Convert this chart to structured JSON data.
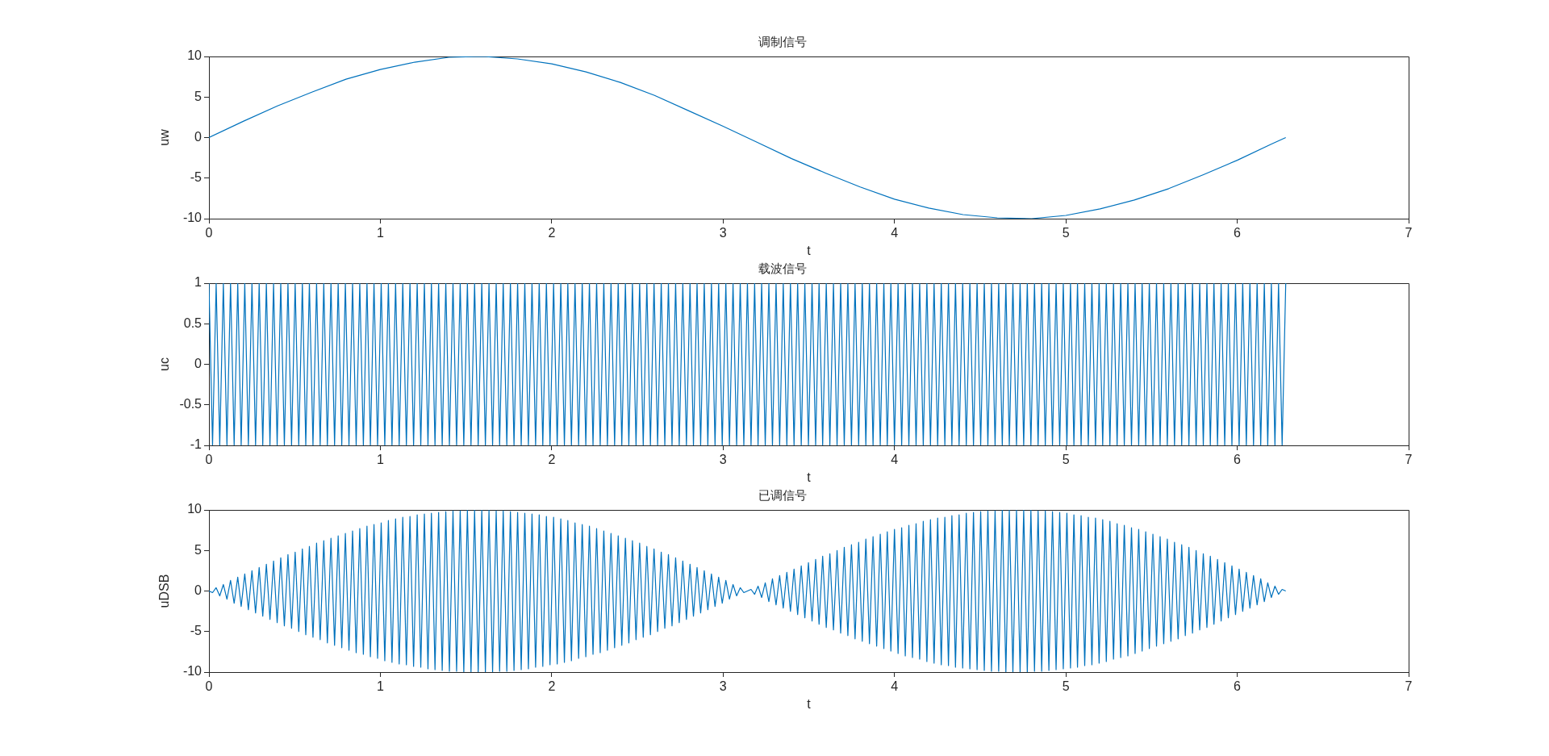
{
  "chart_data": [
    {
      "type": "line",
      "title": "调制信号",
      "xlabel": "t",
      "ylabel": "uw",
      "color": "#0072bd",
      "xlim": [
        0,
        7
      ],
      "xticks": [
        0,
        1,
        2,
        3,
        4,
        5,
        6,
        7
      ],
      "ylim": [
        -10,
        10
      ],
      "yticks": [
        -10,
        -5,
        0,
        5,
        10
      ],
      "x": [
        0,
        0.2,
        0.4,
        0.6,
        0.8,
        1.0,
        1.2,
        1.4,
        1.6,
        1.8,
        2.0,
        2.2,
        2.4,
        2.6,
        2.8,
        3.0,
        3.2,
        3.4,
        3.6,
        3.8,
        4.0,
        4.2,
        4.4,
        4.6,
        4.8,
        5.0,
        5.2,
        5.4,
        5.6,
        5.8,
        6.0,
        6.2,
        6.283
      ],
      "values": [
        0,
        2.0,
        3.9,
        5.6,
        7.2,
        8.4,
        9.3,
        9.9,
        10.0,
        9.7,
        9.1,
        8.1,
        6.8,
        5.2,
        3.3,
        1.4,
        -0.6,
        -2.6,
        -4.4,
        -6.1,
        -7.6,
        -8.7,
        -9.5,
        -9.9,
        -10.0,
        -9.6,
        -8.8,
        -7.7,
        -6.3,
        -4.6,
        -2.8,
        -0.8,
        0
      ]
    },
    {
      "type": "line",
      "title": "载波信号",
      "xlabel": "t",
      "ylabel": "uc",
      "color": "#0072bd",
      "xlim": [
        0,
        7
      ],
      "xticks": [
        0,
        1,
        2,
        3,
        4,
        5,
        6,
        7
      ],
      "ylim": [
        -1,
        1
      ],
      "yticks": [
        -1,
        -0.5,
        0,
        0.5,
        1
      ],
      "x": [
        0,
        0.021,
        0.042,
        0.063,
        0.084,
        0.105,
        0.126,
        0.147,
        0.168,
        0.188,
        0.209,
        0.23,
        0.251,
        0.272,
        0.293,
        0.314,
        0.335,
        0.356,
        0.377,
        0.398,
        0.419,
        0.44,
        0.461,
        0.482,
        0.503,
        0.524,
        0.545,
        0.565,
        0.586,
        0.607,
        0.628,
        0.649,
        0.67,
        0.691,
        0.712,
        0.733,
        0.754,
        0.775,
        0.796,
        0.817,
        0.838,
        0.859,
        0.88,
        0.901,
        0.922,
        0.942,
        0.963,
        0.984,
        1.005,
        1.026,
        1.047,
        1.068,
        1.089,
        1.11,
        1.131,
        1.152,
        1.173,
        1.194,
        1.215,
        1.236,
        1.257,
        1.278,
        1.298,
        1.319,
        1.34,
        1.361,
        1.382,
        1.403,
        1.424,
        1.445,
        1.466,
        1.487,
        1.508,
        1.529,
        1.55,
        1.571,
        1.592,
        1.613,
        1.634,
        1.655,
        1.676,
        1.696,
        1.717,
        1.738,
        1.759,
        1.78,
        1.801,
        1.822,
        1.843,
        1.864,
        1.885,
        1.906,
        1.927,
        1.948,
        1.969,
        1.99,
        2.011,
        2.032,
        2.053,
        2.074,
        2.094,
        2.115,
        2.136,
        2.157,
        2.178,
        2.199,
        2.22,
        2.241,
        2.262,
        2.283,
        2.304,
        2.325,
        2.346,
        2.367,
        2.388,
        2.409,
        2.43,
        2.45,
        2.471,
        2.492,
        2.513,
        2.534,
        2.555,
        2.576,
        2.597,
        2.618,
        2.639,
        2.66,
        2.681,
        2.702,
        2.723,
        2.744,
        2.765,
        2.786,
        2.807,
        2.827,
        2.848,
        2.869,
        2.89,
        2.911,
        2.932,
        2.953,
        2.974,
        2.995,
        3.016,
        3.037,
        3.058,
        3.079,
        3.1,
        3.121,
        3.142,
        3.163,
        3.184,
        3.204,
        3.225,
        3.246,
        3.267,
        3.288,
        3.309,
        3.33,
        3.351,
        3.372,
        3.393,
        3.414,
        3.435,
        3.456,
        3.477,
        3.498,
        3.519,
        3.54,
        3.56,
        3.581,
        3.602,
        3.623,
        3.644,
        3.665,
        3.686,
        3.707,
        3.728,
        3.749,
        3.77,
        3.791,
        3.812,
        3.833,
        3.854,
        3.875,
        3.896,
        3.917,
        3.938,
        3.958,
        3.979,
        4.0,
        4.021,
        4.042,
        4.063,
        4.084,
        4.105,
        4.126,
        4.147,
        4.168,
        4.189,
        4.21,
        4.231,
        4.252,
        4.273,
        4.294,
        4.315,
        4.335,
        4.356,
        4.377,
        4.398,
        4.419,
        4.44,
        4.461,
        4.482,
        4.503,
        4.524,
        4.545,
        4.566,
        4.587,
        4.608,
        4.629,
        4.65,
        4.67,
        4.691,
        4.712,
        4.733,
        4.754,
        4.775,
        4.796,
        4.817,
        4.838,
        4.859,
        4.88,
        4.901,
        4.922,
        4.943,
        4.964,
        4.985,
        5.006,
        5.027,
        5.047,
        5.068,
        5.089,
        5.11,
        5.131,
        5.152,
        5.173,
        5.194,
        5.215,
        5.236,
        5.257,
        5.278,
        5.299,
        5.32,
        5.341,
        5.362,
        5.383,
        5.404,
        5.425,
        5.445,
        5.466,
        5.487,
        5.508,
        5.529,
        5.55,
        5.571,
        5.592,
        5.613,
        5.634,
        5.655,
        5.676,
        5.697,
        5.718,
        5.739,
        5.76,
        5.781,
        5.802,
        5.823,
        5.843,
        5.864,
        5.885,
        5.906,
        5.927,
        5.948,
        5.969,
        5.99,
        6.011,
        6.032,
        6.053,
        6.074,
        6.095,
        6.116,
        6.137,
        6.158,
        6.178,
        6.199,
        6.22,
        6.241,
        6.262,
        6.283
      ],
      "values": [
        1,
        -1,
        1,
        -1,
        1,
        -1,
        1,
        -1,
        1,
        -1,
        1,
        -1,
        1,
        -1,
        1,
        -1,
        1,
        -1,
        1,
        -1,
        1,
        -1,
        1,
        -1,
        1,
        -1,
        1,
        -1,
        1,
        -1,
        1,
        -1,
        1,
        -1,
        1,
        -1,
        1,
        -1,
        1,
        -1,
        1,
        -1,
        1,
        -1,
        1,
        -1,
        1,
        -1,
        1,
        -1,
        1,
        -1,
        1,
        -1,
        1,
        -1,
        1,
        -1,
        1,
        -1,
        1,
        -1,
        1,
        -1,
        1,
        -1,
        1,
        -1,
        1,
        -1,
        1,
        -1,
        1,
        -1,
        1,
        -1,
        1,
        -1,
        1,
        -1,
        1,
        -1,
        1,
        -1,
        1,
        -1,
        1,
        -1,
        1,
        -1,
        1,
        -1,
        1,
        -1,
        1,
        -1,
        1,
        -1,
        1,
        -1,
        1,
        -1,
        1,
        -1,
        1,
        -1,
        1,
        -1,
        1,
        -1,
        1,
        -1,
        1,
        -1,
        1,
        -1,
        1,
        -1,
        1,
        -1,
        1,
        -1,
        1,
        -1,
        1,
        -1,
        1,
        -1,
        1,
        -1,
        1,
        -1,
        1,
        -1,
        1,
        -1,
        1,
        -1,
        1,
        -1,
        1,
        -1,
        1,
        -1,
        1,
        -1,
        1,
        -1,
        1,
        -1,
        1,
        -1,
        1,
        -1,
        1,
        -1,
        1,
        -1,
        1,
        -1,
        1,
        -1,
        1,
        -1,
        1,
        -1,
        1,
        -1,
        1,
        -1,
        1,
        -1,
        1,
        -1,
        1,
        -1,
        1,
        -1,
        1,
        -1,
        1,
        -1,
        1,
        -1,
        1,
        -1,
        1,
        -1,
        1,
        -1,
        1,
        -1,
        1,
        -1,
        1,
        -1,
        1,
        -1,
        1,
        -1,
        1,
        -1,
        1,
        -1,
        1,
        -1,
        1,
        -1,
        1,
        -1,
        1,
        -1,
        1,
        -1,
        1,
        -1,
        1,
        -1,
        1,
        -1,
        1,
        -1,
        1,
        -1,
        1,
        -1,
        1,
        -1,
        1,
        -1,
        1,
        -1,
        1,
        -1,
        1,
        -1,
        1,
        -1,
        1,
        -1,
        1,
        -1,
        1,
        -1,
        1,
        -1,
        1,
        -1,
        1,
        -1,
        1,
        -1,
        1,
        -1,
        1,
        -1,
        1,
        -1,
        1,
        -1,
        1,
        -1,
        1,
        -1,
        1,
        -1,
        1,
        -1,
        1,
        -1,
        1,
        -1,
        1,
        -1,
        1,
        -1,
        1,
        -1,
        1,
        -1,
        1,
        -1,
        1,
        -1,
        1,
        -1,
        1,
        -1,
        1,
        -1,
        1,
        -1,
        1,
        -1,
        1,
        -1,
        1,
        -1,
        1,
        -1,
        1
      ]
    },
    {
      "type": "line",
      "title": "已调信号",
      "xlabel": "t",
      "ylabel": "uDSB",
      "color": "#0072bd",
      "xlim": [
        0,
        7
      ],
      "xticks": [
        0,
        1,
        2,
        3,
        4,
        5,
        6,
        7
      ],
      "ylim": [
        -10,
        10
      ],
      "yticks": [
        -10,
        -5,
        0,
        5,
        10
      ],
      "x": [
        0,
        0.021,
        0.042,
        0.063,
        0.084,
        0.105,
        0.126,
        0.147,
        0.168,
        0.188,
        0.209,
        0.23,
        0.251,
        0.272,
        0.293,
        0.314,
        0.335,
        0.356,
        0.377,
        0.398,
        0.419,
        0.44,
        0.461,
        0.482,
        0.503,
        0.524,
        0.545,
        0.565,
        0.586,
        0.607,
        0.628,
        0.649,
        0.67,
        0.691,
        0.712,
        0.733,
        0.754,
        0.775,
        0.796,
        0.817,
        0.838,
        0.859,
        0.88,
        0.901,
        0.922,
        0.942,
        0.963,
        0.984,
        1.005,
        1.026,
        1.047,
        1.068,
        1.089,
        1.11,
        1.131,
        1.152,
        1.173,
        1.194,
        1.215,
        1.236,
        1.257,
        1.278,
        1.298,
        1.319,
        1.34,
        1.361,
        1.382,
        1.403,
        1.424,
        1.445,
        1.466,
        1.487,
        1.508,
        1.529,
        1.55,
        1.571,
        1.592,
        1.613,
        1.634,
        1.655,
        1.676,
        1.696,
        1.717,
        1.738,
        1.759,
        1.78,
        1.801,
        1.822,
        1.843,
        1.864,
        1.885,
        1.906,
        1.927,
        1.948,
        1.969,
        1.99,
        2.011,
        2.032,
        2.053,
        2.074,
        2.094,
        2.115,
        2.136,
        2.157,
        2.178,
        2.199,
        2.22,
        2.241,
        2.262,
        2.283,
        2.304,
        2.325,
        2.346,
        2.367,
        2.388,
        2.409,
        2.43,
        2.45,
        2.471,
        2.492,
        2.513,
        2.534,
        2.555,
        2.576,
        2.597,
        2.618,
        2.639,
        2.66,
        2.681,
        2.702,
        2.723,
        2.744,
        2.765,
        2.786,
        2.807,
        2.827,
        2.848,
        2.869,
        2.89,
        2.911,
        2.932,
        2.953,
        2.974,
        2.995,
        3.016,
        3.037,
        3.058,
        3.079,
        3.1,
        3.121,
        3.142,
        3.163,
        3.184,
        3.204,
        3.225,
        3.246,
        3.267,
        3.288,
        3.309,
        3.33,
        3.351,
        3.372,
        3.393,
        3.414,
        3.435,
        3.456,
        3.477,
        3.498,
        3.519,
        3.54,
        3.56,
        3.581,
        3.602,
        3.623,
        3.644,
        3.665,
        3.686,
        3.707,
        3.728,
        3.749,
        3.77,
        3.791,
        3.812,
        3.833,
        3.854,
        3.875,
        3.896,
        3.917,
        3.938,
        3.958,
        3.979,
        4.0,
        4.021,
        4.042,
        4.063,
        4.084,
        4.105,
        4.126,
        4.147,
        4.168,
        4.189,
        4.21,
        4.231,
        4.252,
        4.273,
        4.294,
        4.315,
        4.335,
        4.356,
        4.377,
        4.398,
        4.419,
        4.44,
        4.461,
        4.482,
        4.503,
        4.524,
        4.545,
        4.566,
        4.587,
        4.608,
        4.629,
        4.65,
        4.67,
        4.691,
        4.712,
        4.733,
        4.754,
        4.775,
        4.796,
        4.817,
        4.838,
        4.859,
        4.88,
        4.901,
        4.922,
        4.943,
        4.964,
        4.985,
        5.006,
        5.027,
        5.047,
        5.068,
        5.089,
        5.11,
        5.131,
        5.152,
        5.173,
        5.194,
        5.215,
        5.236,
        5.257,
        5.278,
        5.299,
        5.32,
        5.341,
        5.362,
        5.383,
        5.404,
        5.425,
        5.445,
        5.466,
        5.487,
        5.508,
        5.529,
        5.55,
        5.571,
        5.592,
        5.613,
        5.634,
        5.655,
        5.676,
        5.697,
        5.718,
        5.739,
        5.76,
        5.781,
        5.802,
        5.823,
        5.843,
        5.864,
        5.885,
        5.906,
        5.927,
        5.948,
        5.969,
        5.99,
        6.011,
        6.032,
        6.053,
        6.074,
        6.095,
        6.116,
        6.137,
        6.158,
        6.178,
        6.199,
        6.22,
        6.241,
        6.262,
        6.283
      ],
      "values": [
        0,
        -0.2,
        0.4,
        -0.6,
        0.8,
        -1.0,
        1.3,
        -1.5,
        1.7,
        -1.9,
        2.1,
        -2.3,
        2.5,
        -2.7,
        2.9,
        -3.1,
        3.3,
        -3.5,
        3.7,
        -3.9,
        4.1,
        -4.3,
        4.5,
        -4.6,
        4.8,
        -5.0,
        5.2,
        -5.4,
        5.5,
        -5.7,
        5.9,
        -6.0,
        6.2,
        -6.4,
        6.5,
        -6.7,
        6.8,
        -7.0,
        7.1,
        -7.3,
        7.4,
        -7.6,
        7.7,
        -7.8,
        8.0,
        -8.1,
        8.2,
        -8.3,
        8.4,
        -8.6,
        8.7,
        -8.8,
        8.9,
        -9.0,
        9.1,
        -9.1,
        9.2,
        -9.3,
        9.4,
        -9.4,
        9.5,
        -9.6,
        9.6,
        -9.7,
        9.7,
        -9.8,
        9.8,
        -9.9,
        9.9,
        -9.9,
        9.9,
        -10.0,
        10.0,
        -10.0,
        10.0,
        -10.0,
        10.0,
        -10.0,
        10.0,
        -10.0,
        9.9,
        -9.9,
        9.9,
        -9.9,
        9.8,
        -9.8,
        9.7,
        -9.7,
        9.6,
        -9.6,
        9.5,
        -9.4,
        9.4,
        -9.3,
        9.2,
        -9.1,
        9.1,
        -9.0,
        8.9,
        -8.8,
        8.7,
        -8.6,
        8.4,
        -8.3,
        8.2,
        -8.1,
        8.0,
        -7.8,
        7.7,
        -7.6,
        7.4,
        -7.3,
        7.1,
        -7.0,
        6.8,
        -6.7,
        6.5,
        -6.4,
        6.2,
        -6.0,
        5.9,
        -5.7,
        5.5,
        -5.4,
        5.2,
        -5.0,
        4.8,
        -4.6,
        4.5,
        -4.3,
        4.1,
        -3.9,
        3.7,
        -3.5,
        3.3,
        -3.1,
        2.9,
        -2.7,
        2.5,
        -2.3,
        2.1,
        -1.9,
        1.7,
        -1.5,
        1.3,
        -1.0,
        0.8,
        -0.6,
        0.4,
        -0.2,
        0,
        0.2,
        -0.4,
        0.6,
        -0.8,
        1.0,
        -1.3,
        1.5,
        -1.7,
        1.9,
        -2.1,
        2.3,
        -2.5,
        2.7,
        -2.9,
        3.1,
        -3.3,
        3.5,
        -3.7,
        3.9,
        -4.1,
        4.3,
        -4.5,
        4.6,
        -4.8,
        5.0,
        -5.2,
        5.4,
        -5.5,
        5.7,
        -5.9,
        6.0,
        -6.2,
        6.4,
        -6.5,
        6.7,
        -6.8,
        7.0,
        -7.1,
        7.3,
        -7.4,
        7.6,
        -7.7,
        7.8,
        -8.0,
        8.1,
        -8.2,
        8.3,
        -8.4,
        8.6,
        -8.7,
        8.8,
        -8.9,
        9.0,
        -9.1,
        9.1,
        -9.2,
        9.3,
        -9.4,
        9.4,
        -9.5,
        9.6,
        -9.6,
        9.7,
        -9.7,
        9.8,
        -9.8,
        9.9,
        -9.9,
        9.9,
        -9.9,
        10.0,
        -10.0,
        10.0,
        -10.0,
        10.0,
        -10.0,
        10.0,
        -10.0,
        10.0,
        -9.9,
        9.9,
        -9.9,
        9.9,
        -9.8,
        9.8,
        -9.7,
        9.7,
        -9.6,
        9.6,
        -9.5,
        9.4,
        -9.4,
        9.3,
        -9.2,
        9.1,
        -9.1,
        9.0,
        -8.9,
        8.8,
        -8.7,
        8.6,
        -8.4,
        8.3,
        -8.2,
        8.1,
        -8.0,
        7.8,
        -7.7,
        7.6,
        -7.4,
        7.3,
        -7.1,
        7.0,
        -6.8,
        6.7,
        -6.5,
        6.4,
        -6.2,
        6.0,
        -5.9,
        5.7,
        -5.5,
        5.4,
        -5.2,
        5.0,
        -4.8,
        4.6,
        -4.5,
        4.3,
        -4.1,
        3.9,
        -3.7,
        3.5,
        -3.3,
        3.1,
        -2.9,
        2.7,
        -2.5,
        2.3,
        -2.1,
        1.9,
        -1.7,
        1.5,
        -1.3,
        1.0,
        -0.8,
        0.6,
        -0.4,
        0.2,
        0
      ]
    }
  ]
}
